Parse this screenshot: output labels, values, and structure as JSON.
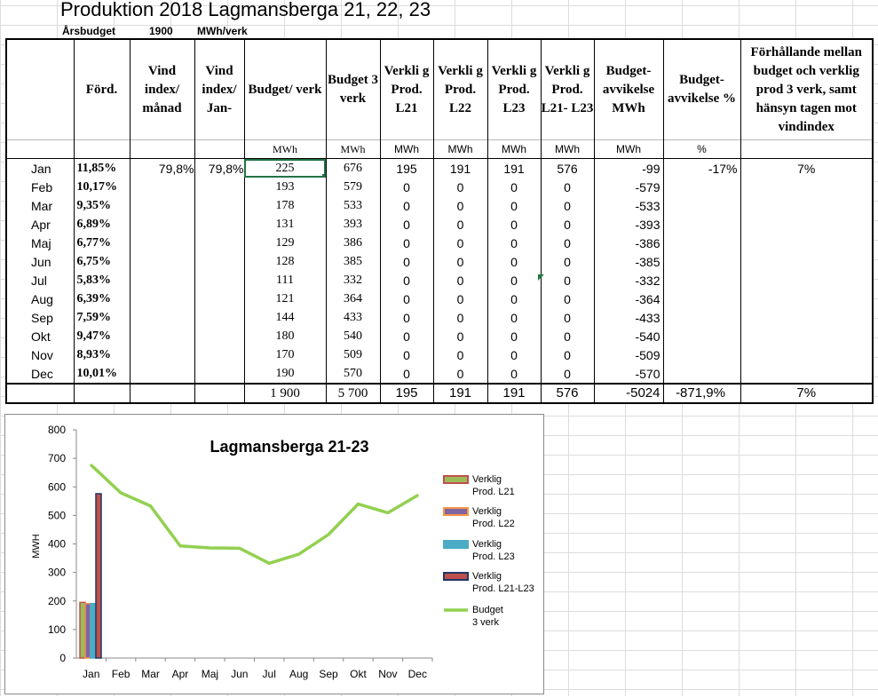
{
  "title": "Produktion 2018 Lagmansberga 21, 22, 23",
  "budget_row": {
    "label": "Årsbudget",
    "value": "1900",
    "unit": "MWh/verk"
  },
  "headers": [
    "",
    "Förd.",
    "Vind index/ månad",
    "Vind index/ Jan-",
    "Budget/ verk",
    "Budget 3 verk",
    "Verkli g Prod. L21",
    "Verkli g Prod. L22",
    "Verkli g Prod. L23",
    "Verkli g Prod. L21- L23",
    "Budget- avvikelse MWh",
    "Budget- avvikelse %",
    "Förhållande mellan budget och verklig prod 3 verk, samt hänsyn tagen mot vindindex"
  ],
  "units": [
    "",
    "",
    "",
    "",
    "MWh",
    "MWh",
    "MWh",
    "MWh",
    "MWh",
    "MWh",
    "MWh",
    "%",
    ""
  ],
  "rows": [
    {
      "month": "Jan",
      "ford": "11,85%",
      "vind_m": "79,8%",
      "vind_j": "79,8%",
      "bv": "225",
      "b3": "676",
      "l21": "195",
      "l22": "191",
      "l23": "191",
      "tot": "576",
      "avv": "-99",
      "avvp": "-17%",
      "forh": "7%"
    },
    {
      "month": "Feb",
      "ford": "10,17%",
      "vind_m": "",
      "vind_j": "",
      "bv": "193",
      "b3": "579",
      "l21": "0",
      "l22": "0",
      "l23": "0",
      "tot": "0",
      "avv": "-579",
      "avvp": "",
      "forh": ""
    },
    {
      "month": "Mar",
      "ford": "9,35%",
      "vind_m": "",
      "vind_j": "",
      "bv": "178",
      "b3": "533",
      "l21": "0",
      "l22": "0",
      "l23": "0",
      "tot": "0",
      "avv": "-533",
      "avvp": "",
      "forh": ""
    },
    {
      "month": "Apr",
      "ford": "6,89%",
      "vind_m": "",
      "vind_j": "",
      "bv": "131",
      "b3": "393",
      "l21": "0",
      "l22": "0",
      "l23": "0",
      "tot": "0",
      "avv": "-393",
      "avvp": "",
      "forh": ""
    },
    {
      "month": "Maj",
      "ford": "6,77%",
      "vind_m": "",
      "vind_j": "",
      "bv": "129",
      "b3": "386",
      "l21": "0",
      "l22": "0",
      "l23": "0",
      "tot": "0",
      "avv": "-386",
      "avvp": "",
      "forh": ""
    },
    {
      "month": "Jun",
      "ford": "6,75%",
      "vind_m": "",
      "vind_j": "",
      "bv": "128",
      "b3": "385",
      "l21": "0",
      "l22": "0",
      "l23": "0",
      "tot": "0",
      "avv": "-385",
      "avvp": "",
      "forh": ""
    },
    {
      "month": "Jul",
      "ford": "5,83%",
      "vind_m": "",
      "vind_j": "",
      "bv": "111",
      "b3": "332",
      "l21": "0",
      "l22": "0",
      "l23": "0",
      "tot": "0",
      "avv": "-332",
      "avvp": "",
      "forh": ""
    },
    {
      "month": "Aug",
      "ford": "6,39%",
      "vind_m": "",
      "vind_j": "",
      "bv": "121",
      "b3": "364",
      "l21": "0",
      "l22": "0",
      "l23": "0",
      "tot": "0",
      "avv": "-364",
      "avvp": "",
      "forh": ""
    },
    {
      "month": "Sep",
      "ford": "7,59%",
      "vind_m": "",
      "vind_j": "",
      "bv": "144",
      "b3": "433",
      "l21": "0",
      "l22": "0",
      "l23": "0",
      "tot": "0",
      "avv": "-433",
      "avvp": "",
      "forh": ""
    },
    {
      "month": "Okt",
      "ford": "9,47%",
      "vind_m": "",
      "vind_j": "",
      "bv": "180",
      "b3": "540",
      "l21": "0",
      "l22": "0",
      "l23": "0",
      "tot": "0",
      "avv": "-540",
      "avvp": "",
      "forh": ""
    },
    {
      "month": "Nov",
      "ford": "8,93%",
      "vind_m": "",
      "vind_j": "",
      "bv": "170",
      "b3": "509",
      "l21": "0",
      "l22": "0",
      "l23": "0",
      "tot": "0",
      "avv": "-509",
      "avvp": "",
      "forh": ""
    },
    {
      "month": "Dec",
      "ford": "10,01%",
      "vind_m": "",
      "vind_j": "",
      "bv": "190",
      "b3": "570",
      "l21": "0",
      "l22": "0",
      "l23": "0",
      "tot": "0",
      "avv": "-570",
      "avvp": "",
      "forh": ""
    }
  ],
  "totals": {
    "bv": "1 900",
    "b3": "5 700",
    "l21": "195",
    "l22": "191",
    "l23": "191",
    "tot": "576",
    "avv": "-5024",
    "avvp": "-871,9%",
    "forh": "7%"
  },
  "chart_data": {
    "type": "bar",
    "title": "Lagmansberga 21-23",
    "ylabel": "MWH",
    "ylim": [
      0,
      800
    ],
    "yticks": [
      0,
      100,
      200,
      300,
      400,
      500,
      600,
      700,
      800
    ],
    "categories": [
      "Jan",
      "Feb",
      "Mar",
      "Apr",
      "Maj",
      "Jun",
      "Jul",
      "Aug",
      "Sep",
      "Okt",
      "Nov",
      "Dec"
    ],
    "series": [
      {
        "name": "Verklig Prod. L21",
        "kind": "bar",
        "color": "#9bbb59",
        "edge": "#c0504d",
        "values": [
          195,
          0,
          0,
          0,
          0,
          0,
          0,
          0,
          0,
          0,
          0,
          0
        ]
      },
      {
        "name": "Verklig Prod. L22",
        "kind": "bar",
        "color": "#8064a2",
        "edge": "#f79646",
        "values": [
          191,
          0,
          0,
          0,
          0,
          0,
          0,
          0,
          0,
          0,
          0,
          0
        ]
      },
      {
        "name": "Verklig Prod. L23",
        "kind": "bar",
        "color": "#4bacc6",
        "edge": "#4bacc6",
        "values": [
          191,
          0,
          0,
          0,
          0,
          0,
          0,
          0,
          0,
          0,
          0,
          0
        ]
      },
      {
        "name": "Verklig Prod. L21-L23",
        "kind": "bar",
        "color": "#c0504d",
        "edge": "#1f3864",
        "values": [
          576,
          0,
          0,
          0,
          0,
          0,
          0,
          0,
          0,
          0,
          0,
          0
        ]
      },
      {
        "name": "Budget 3 verk",
        "kind": "line",
        "color": "#92d050",
        "values": [
          676,
          579,
          533,
          393,
          386,
          385,
          332,
          364,
          433,
          540,
          509,
          570
        ]
      }
    ],
    "legend_lines": [
      [
        "Verklig",
        "Prod. L21"
      ],
      [
        "Verklig",
        "Prod. L22"
      ],
      [
        "Verklig",
        "Prod. L23"
      ],
      [
        "Verklig",
        "Prod. L21-L23"
      ],
      [
        "Budget",
        "3 verk"
      ]
    ],
    "legend": "right",
    "grid": false
  }
}
